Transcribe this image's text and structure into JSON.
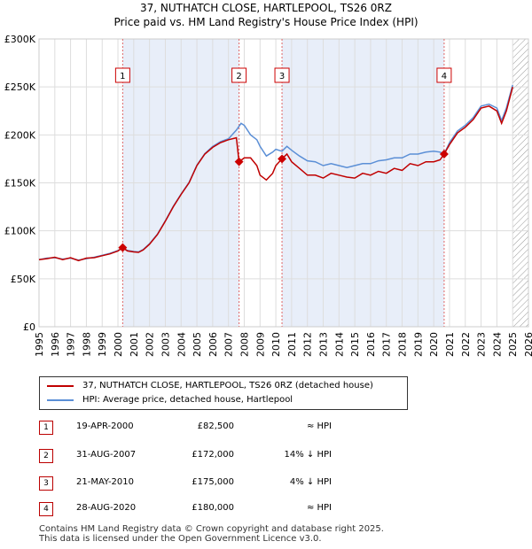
{
  "header": {
    "title_line1": "37, NUTHATCH CLOSE, HARTLEPOOL, TS26 0RZ",
    "title_line2": "Price paid vs. HM Land Registry's House Price Index (HPI)"
  },
  "legend": {
    "property_label": "37, NUTHATCH CLOSE, HARTLEPOOL, TS26 0RZ (detached house)",
    "hpi_label": "HPI: Average price, detached house, Hartlepool"
  },
  "colors": {
    "property_line": "#c00000",
    "hpi_line": "#5b8fd6",
    "shade": "#e8eef9",
    "marker_line": "#e06666"
  },
  "sales": [
    {
      "num": "1",
      "date": "19-APR-2000",
      "price": "£82,500",
      "hpi_rel": "≈ HPI"
    },
    {
      "num": "2",
      "date": "31-AUG-2007",
      "price": "£172,000",
      "hpi_rel": "14% ↓ HPI"
    },
    {
      "num": "3",
      "date": "21-MAY-2010",
      "price": "£175,000",
      "hpi_rel": "4% ↓ HPI"
    },
    {
      "num": "4",
      "date": "28-AUG-2020",
      "price": "£180,000",
      "hpi_rel": "≈ HPI"
    }
  ],
  "footer": {
    "line1": "Contains HM Land Registry data © Crown copyright and database right 2025.",
    "line2": "This data is licensed under the Open Government Licence v3.0."
  },
  "chart_data": {
    "type": "line",
    "title": "37, NUTHATCH CLOSE, HARTLEPOOL, TS26 0RZ",
    "subtitle": "Price paid vs. HM Land Registry's House Price Index (HPI)",
    "xlabel": "",
    "ylabel": "",
    "xlim": [
      1995,
      2026
    ],
    "ylim": [
      0,
      300000
    ],
    "x_ticks": [
      "1995",
      "1996",
      "1997",
      "1998",
      "1999",
      "2000",
      "2001",
      "2002",
      "2003",
      "2004",
      "2005",
      "2006",
      "2007",
      "2008",
      "2009",
      "2010",
      "2011",
      "2012",
      "2013",
      "2014",
      "2015",
      "2016",
      "2017",
      "2018",
      "2019",
      "2020",
      "2021",
      "2022",
      "2023",
      "2024",
      "2025",
      "2026"
    ],
    "y_ticks": [
      {
        "value": 0,
        "label": "£0"
      },
      {
        "value": 50000,
        "label": "£50K"
      },
      {
        "value": 100000,
        "label": "£100K"
      },
      {
        "value": 150000,
        "label": "£150K"
      },
      {
        "value": 200000,
        "label": "£200K"
      },
      {
        "value": 250000,
        "label": "£250K"
      },
      {
        "value": 300000,
        "label": "£300K"
      }
    ],
    "grid": true,
    "sale_markers": [
      {
        "label": "1",
        "x": 2000.3,
        "price": 82500
      },
      {
        "label": "2",
        "x": 2007.67,
        "price": 172000
      },
      {
        "label": "3",
        "x": 2010.39,
        "price": 175000
      },
      {
        "label": "4",
        "x": 2020.66,
        "price": 180000
      }
    ],
    "hatch_from": 2025.0,
    "series": [
      {
        "name": "37, NUTHATCH CLOSE, HARTLEPOOL, TS26 0RZ (detached house)",
        "color": "#c00000",
        "points": [
          [
            1995.0,
            70000
          ],
          [
            1995.5,
            71000
          ],
          [
            1996.0,
            72500
          ],
          [
            1996.5,
            70000
          ],
          [
            1997.0,
            72000
          ],
          [
            1997.5,
            69000
          ],
          [
            1998.0,
            71500
          ],
          [
            1998.5,
            72000
          ],
          [
            1999.0,
            74000
          ],
          [
            1999.5,
            76000
          ],
          [
            2000.0,
            79000
          ],
          [
            2000.3,
            82500
          ],
          [
            2000.6,
            79000
          ],
          [
            2001.0,
            78000
          ],
          [
            2001.3,
            77500
          ],
          [
            2001.6,
            80000
          ],
          [
            2002.0,
            86000
          ],
          [
            2002.5,
            96000
          ],
          [
            2003.0,
            110000
          ],
          [
            2003.5,
            125000
          ],
          [
            2004.0,
            138000
          ],
          [
            2004.5,
            150000
          ],
          [
            2005.0,
            168000
          ],
          [
            2005.5,
            180000
          ],
          [
            2006.0,
            187000
          ],
          [
            2006.5,
            192000
          ],
          [
            2007.0,
            195000
          ],
          [
            2007.5,
            197000
          ],
          [
            2007.67,
            172000
          ],
          [
            2008.0,
            176000
          ],
          [
            2008.4,
            176000
          ],
          [
            2008.8,
            168000
          ],
          [
            2009.0,
            158000
          ],
          [
            2009.4,
            153000
          ],
          [
            2009.8,
            160000
          ],
          [
            2010.0,
            168000
          ],
          [
            2010.39,
            175000
          ],
          [
            2010.7,
            180000
          ],
          [
            2011.0,
            172000
          ],
          [
            2011.5,
            165000
          ],
          [
            2012.0,
            158000
          ],
          [
            2012.5,
            158000
          ],
          [
            2013.0,
            155000
          ],
          [
            2013.5,
            160000
          ],
          [
            2014.0,
            158000
          ],
          [
            2014.5,
            156000
          ],
          [
            2015.0,
            155000
          ],
          [
            2015.5,
            160000
          ],
          [
            2016.0,
            158000
          ],
          [
            2016.5,
            162000
          ],
          [
            2017.0,
            160000
          ],
          [
            2017.5,
            165000
          ],
          [
            2018.0,
            163000
          ],
          [
            2018.5,
            170000
          ],
          [
            2019.0,
            168000
          ],
          [
            2019.5,
            172000
          ],
          [
            2020.0,
            172000
          ],
          [
            2020.4,
            174000
          ],
          [
            2020.66,
            180000
          ],
          [
            2021.0,
            190000
          ],
          [
            2021.5,
            202000
          ],
          [
            2022.0,
            208000
          ],
          [
            2022.5,
            216000
          ],
          [
            2023.0,
            228000
          ],
          [
            2023.5,
            230000
          ],
          [
            2024.0,
            225000
          ],
          [
            2024.3,
            212000
          ],
          [
            2024.6,
            225000
          ],
          [
            2025.0,
            250000
          ]
        ]
      },
      {
        "name": "HPI: Average price, detached house, Hartlepool",
        "color": "#5b8fd6",
        "points": [
          [
            1995.0,
            70000
          ],
          [
            1995.5,
            71500
          ],
          [
            1996.0,
            72000
          ],
          [
            1996.5,
            70500
          ],
          [
            1997.0,
            71500
          ],
          [
            1997.5,
            69500
          ],
          [
            1998.0,
            71000
          ],
          [
            1998.5,
            72500
          ],
          [
            1999.0,
            74500
          ],
          [
            1999.5,
            76500
          ],
          [
            2000.0,
            79500
          ],
          [
            2000.3,
            82000
          ],
          [
            2000.6,
            79500
          ],
          [
            2001.0,
            78500
          ],
          [
            2001.3,
            78000
          ],
          [
            2001.6,
            80500
          ],
          [
            2002.0,
            86500
          ],
          [
            2002.5,
            96500
          ],
          [
            2003.0,
            110500
          ],
          [
            2003.5,
            125500
          ],
          [
            2004.0,
            138500
          ],
          [
            2004.5,
            150500
          ],
          [
            2005.0,
            168500
          ],
          [
            2005.5,
            180500
          ],
          [
            2006.0,
            188000
          ],
          [
            2006.5,
            193000
          ],
          [
            2007.0,
            196000
          ],
          [
            2007.5,
            205000
          ],
          [
            2007.8,
            212000
          ],
          [
            2008.0,
            210000
          ],
          [
            2008.4,
            200000
          ],
          [
            2008.8,
            195000
          ],
          [
            2009.0,
            188000
          ],
          [
            2009.4,
            178000
          ],
          [
            2009.8,
            182000
          ],
          [
            2010.0,
            185000
          ],
          [
            2010.39,
            183000
          ],
          [
            2010.7,
            188000
          ],
          [
            2011.0,
            184000
          ],
          [
            2011.5,
            178000
          ],
          [
            2012.0,
            173000
          ],
          [
            2012.5,
            172000
          ],
          [
            2013.0,
            168000
          ],
          [
            2013.5,
            170000
          ],
          [
            2014.0,
            168000
          ],
          [
            2014.5,
            166000
          ],
          [
            2015.0,
            168000
          ],
          [
            2015.5,
            170000
          ],
          [
            2016.0,
            170000
          ],
          [
            2016.5,
            173000
          ],
          [
            2017.0,
            174000
          ],
          [
            2017.5,
            176000
          ],
          [
            2018.0,
            176000
          ],
          [
            2018.5,
            180000
          ],
          [
            2019.0,
            180000
          ],
          [
            2019.5,
            182000
          ],
          [
            2020.0,
            183000
          ],
          [
            2020.4,
            182000
          ],
          [
            2020.66,
            180000
          ],
          [
            2021.0,
            192000
          ],
          [
            2021.5,
            204000
          ],
          [
            2022.0,
            210000
          ],
          [
            2022.5,
            218000
          ],
          [
            2023.0,
            230000
          ],
          [
            2023.5,
            232000
          ],
          [
            2024.0,
            228000
          ],
          [
            2024.3,
            215000
          ],
          [
            2024.6,
            228000
          ],
          [
            2025.0,
            252000
          ]
        ]
      }
    ]
  }
}
